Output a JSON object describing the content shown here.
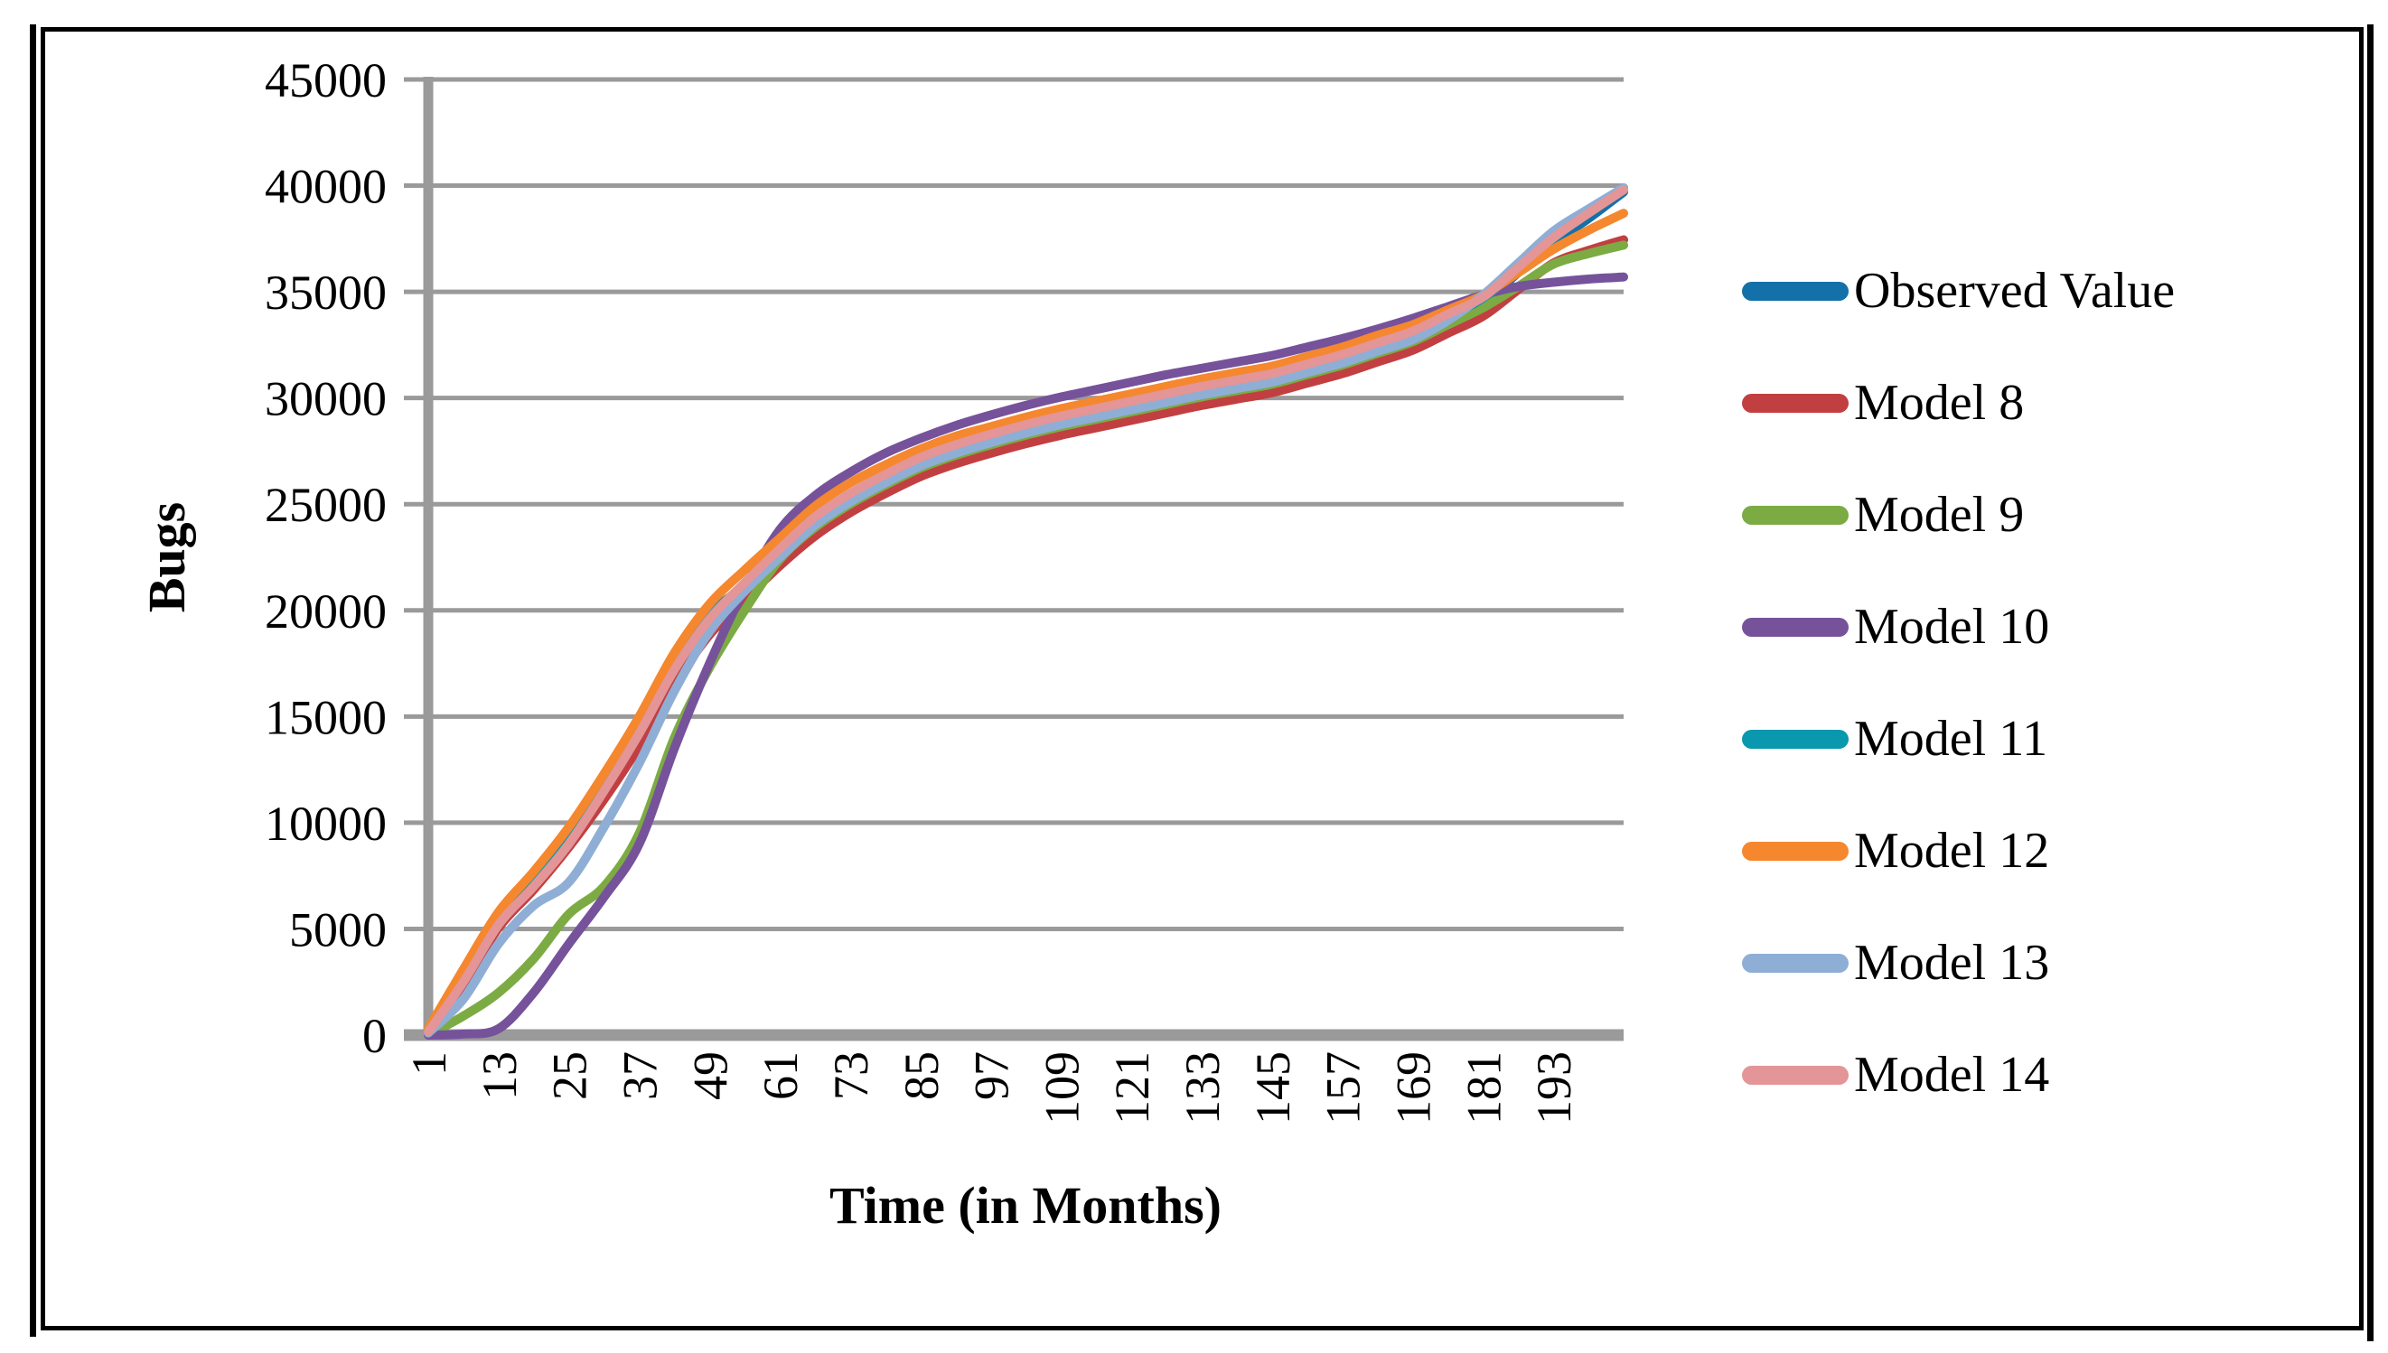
{
  "figure": {
    "background": "#FFFFFF",
    "border_color": "#000000"
  },
  "chart_data": {
    "type": "line",
    "title": "",
    "xlabel": "Time (in Months)",
    "ylabel": "Bugs",
    "grid_color": "#9A9A9A",
    "axis_color": "#9A9A9A",
    "text_color": "#000000",
    "ylim": [
      0,
      45000
    ],
    "xlim": [
      1,
      205
    ],
    "grid": "horizontal",
    "legend_position": "right",
    "y_tick_values": [
      45000,
      40000,
      35000,
      30000,
      25000,
      20000,
      15000,
      10000,
      5000,
      0
    ],
    "y_tick_labels": [
      "45000",
      "40000",
      "35000",
      "30000",
      "25000",
      "20000",
      "15000",
      "10000",
      "5000",
      "0"
    ],
    "x_tick_months": [
      1,
      13,
      25,
      37,
      49,
      61,
      73,
      85,
      97,
      109,
      121,
      133,
      145,
      157,
      169,
      181,
      193
    ],
    "x_tick_labels": [
      "1",
      "13",
      "25",
      "37",
      "49",
      "61",
      "73",
      "85",
      "97",
      "109",
      "121",
      "133",
      "145",
      "157",
      "169",
      "181",
      "193"
    ],
    "months": [
      1,
      7,
      13,
      19,
      25,
      31,
      37,
      43,
      49,
      55,
      61,
      67,
      73,
      79,
      85,
      91,
      97,
      103,
      109,
      115,
      121,
      127,
      133,
      139,
      145,
      151,
      157,
      163,
      169,
      175,
      181,
      187,
      193,
      199,
      205
    ],
    "series": [
      {
        "name": "Observed Value",
        "color": "#1470A8",
        "values": [
          250,
          2600,
          5300,
          7100,
          9100,
          11600,
          14300,
          17300,
          19700,
          21050,
          22650,
          24150,
          25250,
          26150,
          26950,
          27550,
          28050,
          28500,
          28900,
          29250,
          29600,
          29950,
          30300,
          30600,
          30900,
          31350,
          31800,
          32350,
          32900,
          33700,
          34500,
          35900,
          37300,
          38450,
          39700
        ]
      },
      {
        "name": "Model 8",
        "color": "#C23F41",
        "values": [
          100,
          2350,
          5050,
          6850,
          8850,
          11100,
          13600,
          16500,
          18850,
          20500,
          22100,
          23500,
          24600,
          25500,
          26300,
          26900,
          27400,
          27850,
          28250,
          28600,
          28950,
          29300,
          29650,
          29950,
          30250,
          30700,
          31150,
          31700,
          32250,
          33050,
          33850,
          35100,
          36350,
          36950,
          37450
        ]
      },
      {
        "name": "Model 9",
        "color": "#7CAB43",
        "values": [
          0,
          900,
          2000,
          3600,
          5700,
          7000,
          9500,
          14000,
          17300,
          20000,
          22400,
          23900,
          25000,
          25900,
          26700,
          27300,
          27800,
          28250,
          28650,
          29000,
          29350,
          29700,
          30050,
          30350,
          30650,
          31100,
          31550,
          32100,
          32650,
          33450,
          34250,
          35250,
          36300,
          36800,
          37200
        ]
      },
      {
        "name": "Model 10",
        "color": "#76529B",
        "values": [
          0,
          50,
          300,
          2000,
          4300,
          6500,
          9000,
          13500,
          17500,
          21000,
          23800,
          25400,
          26500,
          27400,
          28100,
          28700,
          29200,
          29650,
          30050,
          30400,
          30750,
          31100,
          31400,
          31700,
          32000,
          32400,
          32800,
          33250,
          33750,
          34300,
          34850,
          35250,
          35450,
          35600,
          35700
        ]
      },
      {
        "name": "Model 11",
        "color": "#0998AD",
        "values": [
          200,
          2700,
          5400,
          7200,
          9200,
          11700,
          14400,
          17400,
          19800,
          21180,
          22780,
          24280,
          25380,
          26280,
          27080,
          27680,
          28180,
          28630,
          29030,
          29380,
          29730,
          30080,
          30430,
          30730,
          31030,
          31480,
          31930,
          32480,
          33030,
          33830,
          34700,
          36100,
          37500,
          38750,
          39900
        ]
      },
      {
        "name": "Model 12",
        "color": "#F5872E",
        "values": [
          300,
          3100,
          5800,
          7700,
          9800,
          12300,
          15000,
          18000,
          20300,
          21900,
          23400,
          24900,
          26000,
          26850,
          27600,
          28200,
          28650,
          29100,
          29500,
          29850,
          30200,
          30550,
          30900,
          31200,
          31500,
          31950,
          32400,
          32950,
          33450,
          34150,
          34850,
          35900,
          37000,
          37900,
          38700
        ]
      },
      {
        "name": "Model 13",
        "color": "#8FAED5",
        "values": [
          100,
          1700,
          4300,
          6100,
          7200,
          9800,
          12800,
          16200,
          19000,
          20900,
          22500,
          24000,
          25100,
          26000,
          26800,
          27400,
          27900,
          28350,
          28750,
          29100,
          29450,
          29800,
          30150,
          30450,
          30750,
          31200,
          31650,
          32200,
          32750,
          33650,
          34850,
          36350,
          37850,
          38900,
          39900
        ]
      },
      {
        "name": "Model 14",
        "color": "#E39597",
        "values": [
          150,
          2500,
          5200,
          7000,
          9000,
          11500,
          14200,
          17200,
          19600,
          21300,
          22900,
          24400,
          25500,
          26400,
          27200,
          27800,
          28300,
          28750,
          29150,
          29500,
          29850,
          30200,
          30550,
          30850,
          31150,
          31600,
          32050,
          32600,
          33150,
          33950,
          34750,
          36150,
          37550,
          38700,
          39800
        ]
      }
    ]
  }
}
